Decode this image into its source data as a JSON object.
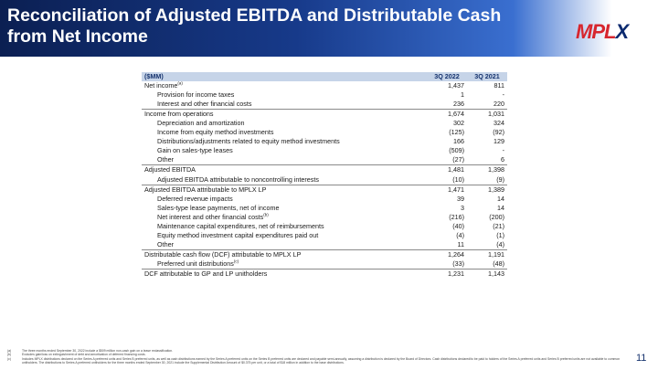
{
  "slide": {
    "title": "Reconciliation of Adjusted EBITDA and Distributable Cash from Net Income",
    "logo_text": {
      "mp": "MP",
      "l": "L",
      "x": "X"
    },
    "page_number": "11",
    "colors": {
      "header_dark": "#0b1f52",
      "header_mid": "#3a6fd0",
      "table_header": "#c6d4e8",
      "logo_red": "#d7262e",
      "logo_blue": "#0b2a6f"
    }
  },
  "table": {
    "header": {
      "label": "($MM)",
      "col1": "3Q 2022",
      "col2": "3Q 2021"
    },
    "rows": [
      {
        "label": "Net income",
        "sup": "(a)",
        "q3_2022": "1,437",
        "q3_2021": "811",
        "indent": false,
        "rule": false
      },
      {
        "label": "Provision for income taxes",
        "sup": "",
        "q3_2022": "1",
        "q3_2021": "-",
        "indent": true,
        "rule": false
      },
      {
        "label": "Interest and other financial costs",
        "sup": "",
        "q3_2022": "236",
        "q3_2021": "220",
        "indent": true,
        "rule": false
      },
      {
        "label": "Income from operations",
        "sup": "",
        "q3_2022": "1,674",
        "q3_2021": "1,031",
        "indent": false,
        "rule": true
      },
      {
        "label": "Depreciation and amortization",
        "sup": "",
        "q3_2022": "302",
        "q3_2021": "324",
        "indent": true,
        "rule": false
      },
      {
        "label": "Income from equity method investments",
        "sup": "",
        "q3_2022": "(125)",
        "q3_2021": "(92)",
        "indent": true,
        "rule": false
      },
      {
        "label": "Distributions/adjustments related to equity method investments",
        "sup": "",
        "q3_2022": "166",
        "q3_2021": "129",
        "indent": true,
        "rule": false
      },
      {
        "label": "Gain on sales-type leases",
        "sup": "",
        "q3_2022": "(509)",
        "q3_2021": "-",
        "indent": true,
        "rule": false
      },
      {
        "label": "Other",
        "sup": "",
        "q3_2022": "(27)",
        "q3_2021": "6",
        "indent": true,
        "rule": false
      },
      {
        "label": "Adjusted EBITDA",
        "sup": "",
        "q3_2022": "1,481",
        "q3_2021": "1,398",
        "indent": false,
        "rule": true
      },
      {
        "label": "Adjusted EBITDA attributable to noncontrolling interests",
        "sup": "",
        "q3_2022": "(10)",
        "q3_2021": "(9)",
        "indent": true,
        "rule": false
      },
      {
        "label": "Adjusted EBITDA attributable to MPLX LP",
        "sup": "",
        "q3_2022": "1,471",
        "q3_2021": "1,389",
        "indent": false,
        "rule": true
      },
      {
        "label": "Deferred revenue impacts",
        "sup": "",
        "q3_2022": "39",
        "q3_2021": "14",
        "indent": true,
        "rule": false
      },
      {
        "label": "Sales-type lease payments, net of income",
        "sup": "",
        "q3_2022": "3",
        "q3_2021": "14",
        "indent": true,
        "rule": false
      },
      {
        "label": "Net interest and other financial costs",
        "sup": "(b)",
        "q3_2022": "(216)",
        "q3_2021": "(200)",
        "indent": true,
        "rule": false
      },
      {
        "label": "Maintenance capital expenditures, net of reimbursements",
        "sup": "",
        "q3_2022": "(40)",
        "q3_2021": "(21)",
        "indent": true,
        "rule": false
      },
      {
        "label": "Equity method investment capital expenditures paid out",
        "sup": "",
        "q3_2022": "(4)",
        "q3_2021": "(1)",
        "indent": true,
        "rule": false
      },
      {
        "label": "Other",
        "sup": "",
        "q3_2022": "11",
        "q3_2021": "(4)",
        "indent": true,
        "rule": false
      },
      {
        "label": "Distributable cash flow (DCF) attributable to MPLX LP",
        "sup": "",
        "q3_2022": "1,264",
        "q3_2021": "1,191",
        "indent": false,
        "rule": true
      },
      {
        "label": "Preferred unit distributions",
        "sup": "(c)",
        "q3_2022": "(33)",
        "q3_2021": "(48)",
        "indent": true,
        "rule": false
      },
      {
        "label": "DCF attributable to GP and LP unitholders",
        "sup": "",
        "q3_2022": "1,231",
        "q3_2021": "1,143",
        "indent": false,
        "rule": true
      }
    ]
  },
  "footnotes": [
    {
      "mark": "(a)",
      "text": "The three months ended September 30, 2022 include a $509 million non-cash gain on a lease reclassification."
    },
    {
      "mark": "(b)",
      "text": "Excludes gain/loss on extinguishment of debt and amortization of deferred financing costs."
    },
    {
      "mark": "(c)",
      "text": "Includes MPLX distributions declared on the Series A preferred units and Series B preferred units, as well as cash distributions earned by the Series A preferred units on the Series B preferred units are declared and payable semi-annually, assuming a distribution is declared by the Board of Directors. Cash distributions declared/to be paid to holders of the Series A preferred units and Series B preferred units are not available to common unitholders. The distributions to Series A preferred unitholders for the three months ended September 30, 2021 include the Supplemental Distribution Amount of $0.375 per unit, or a total of $18 million in addition to the base distributions."
    }
  ]
}
